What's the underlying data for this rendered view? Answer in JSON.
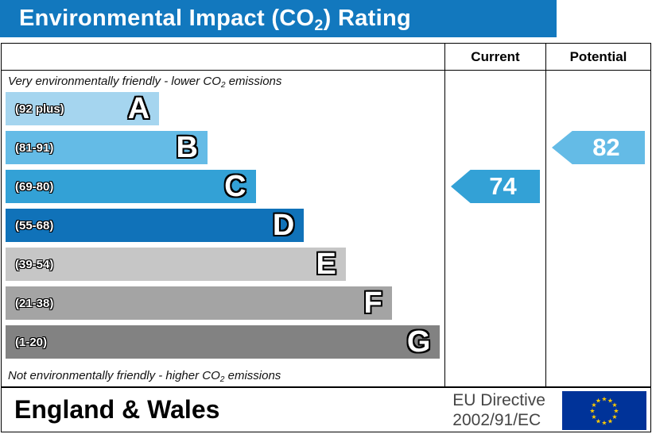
{
  "title": {
    "pre": "Environmental Impact (CO",
    "sub": "2",
    "post": ") Rating"
  },
  "header": {
    "current": "Current",
    "potential": "Potential"
  },
  "notes": {
    "top": {
      "pre": "Very environmentally friendly - lower CO",
      "sub": "2",
      "post": " emissions"
    },
    "bottom": {
      "pre": "Not environmentally friendly - higher CO",
      "sub": "2",
      "post": " emissions"
    }
  },
  "bands": [
    {
      "letter": "A",
      "range": "(92 plus)",
      "color": "#a5d5ef",
      "width_pct": 35
    },
    {
      "letter": "B",
      "range": "(81-91)",
      "color": "#64bbe6",
      "width_pct": 46
    },
    {
      "letter": "C",
      "range": "(69-80)",
      "color": "#33a1d6",
      "width_pct": 57
    },
    {
      "letter": "D",
      "range": "(55-68)",
      "color": "#1072b9",
      "width_pct": 68
    },
    {
      "letter": "E",
      "range": "(39-54)",
      "color": "#c6c6c6",
      "width_pct": 77.5
    },
    {
      "letter": "F",
      "range": "(21-38)",
      "color": "#a4a4a4",
      "width_pct": 88
    },
    {
      "letter": "G",
      "range": "(1-20)",
      "color": "#828282",
      "width_pct": 99
    }
  ],
  "current": {
    "value": "74",
    "color": "#33a1d6",
    "band_index": 2
  },
  "potential": {
    "value": "82",
    "color": "#64bbe6",
    "band_index": 1
  },
  "footer": {
    "region": "England & Wales",
    "directive_line1": "EU Directive",
    "directive_line2": "2002/91/EC"
  },
  "colors": {
    "title_bar": "#1278be",
    "flag_bg": "#003399",
    "flag_stars": "#ffcc00",
    "border": "#000000"
  },
  "chart_data": {
    "type": "bar",
    "title": "Environmental Impact (CO2) Rating",
    "categories": [
      "A",
      "B",
      "C",
      "D",
      "E",
      "F",
      "G"
    ],
    "band_ranges": [
      "92 plus",
      "81-91",
      "69-80",
      "55-68",
      "39-54",
      "21-38",
      "1-20"
    ],
    "band_bar_lengths_pct": [
      35,
      46,
      57,
      68,
      77.5,
      88,
      99
    ],
    "series": [
      {
        "name": "Current",
        "value": 74,
        "band": "C"
      },
      {
        "name": "Potential",
        "value": 82,
        "band": "B"
      }
    ],
    "annotations": [
      "Very environmentally friendly - lower CO2 emissions",
      "Not environmentally friendly - higher CO2 emissions"
    ],
    "legend": "EU Directive 2002/91/EC",
    "region": "England & Wales",
    "ylim": [
      1,
      100
    ]
  }
}
